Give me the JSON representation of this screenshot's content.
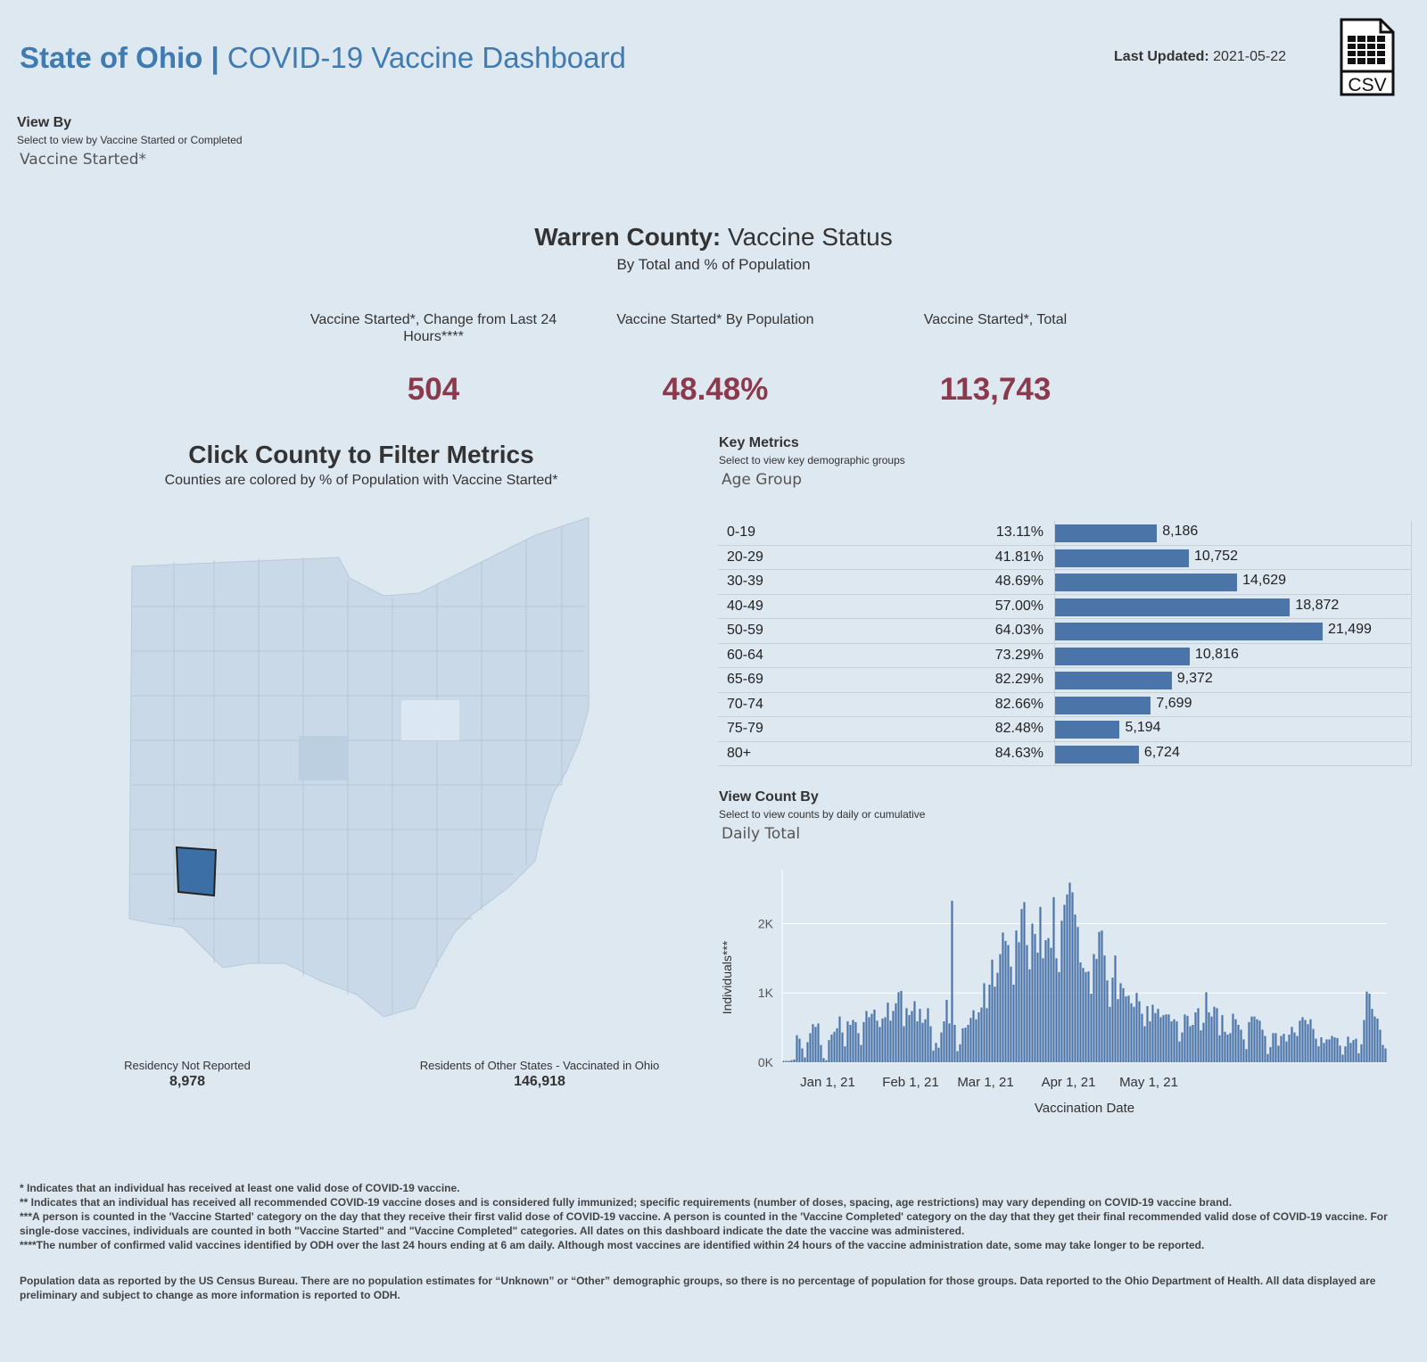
{
  "header": {
    "title_bold": "State of Ohio |",
    "title_rest": "COVID-19 Vaccine Dashboard",
    "last_updated_label": "Last Updated:",
    "last_updated_value": "2021-05-22",
    "csv_label": "CSV"
  },
  "view_by": {
    "heading": "View By",
    "hint": "Select to view by Vaccine Started or Completed",
    "value": "Vaccine Started*"
  },
  "county": {
    "name": "Warren County:",
    "status": "Vaccine Status",
    "subtitle": "By Total and % of Population"
  },
  "kpis": [
    {
      "label": "Vaccine Started*, Change from Last 24 Hours****",
      "value": "504"
    },
    {
      "label": "Vaccine Started* By Population",
      "value": "48.48%"
    },
    {
      "label": "Vaccine Started*, Total",
      "value": "113,743"
    }
  ],
  "map": {
    "title": "Click County to Filter Metrics",
    "subtitle": "Counties are colored by % of Population with Vaccine Started*",
    "selected_county": "Warren",
    "residency_not_reported_label": "Residency Not Reported",
    "residency_not_reported_value": "8,978",
    "other_states_label": "Residents of Other States - Vaccinated in Ohio",
    "other_states_value": "146,918"
  },
  "key_metrics": {
    "heading": "Key Metrics",
    "hint": "Select to view key demographic groups",
    "value": "Age Group",
    "rows": [
      {
        "group": "0-19",
        "pct": "13.11%",
        "count": 8186,
        "count_label": "8,186"
      },
      {
        "group": "20-29",
        "pct": "41.81%",
        "count": 10752,
        "count_label": "10,752"
      },
      {
        "group": "30-39",
        "pct": "48.69%",
        "count": 14629,
        "count_label": "14,629"
      },
      {
        "group": "40-49",
        "pct": "57.00%",
        "count": 18872,
        "count_label": "18,872"
      },
      {
        "group": "50-59",
        "pct": "64.03%",
        "count": 21499,
        "count_label": "21,499"
      },
      {
        "group": "60-64",
        "pct": "73.29%",
        "count": 10816,
        "count_label": "10,816"
      },
      {
        "group": "65-69",
        "pct": "82.29%",
        "count": 9372,
        "count_label": "9,372"
      },
      {
        "group": "70-74",
        "pct": "82.66%",
        "count": 7699,
        "count_label": "7,699"
      },
      {
        "group": "75-79",
        "pct": "82.48%",
        "count": 5194,
        "count_label": "5,194"
      },
      {
        "group": "80+",
        "pct": "84.63%",
        "count": 6724,
        "count_label": "6,724"
      }
    ]
  },
  "view_count": {
    "heading": "View Count By",
    "hint": "Select to view counts by daily or cumulative",
    "value": "Daily Total"
  },
  "chart_data": {
    "type": "bar",
    "title": "",
    "xlabel": "Vaccination Date",
    "ylabel": "Individuals***",
    "ylim": [
      0,
      2700
    ],
    "y_ticks": [
      {
        "v": 0,
        "label": "0K"
      },
      {
        "v": 1000,
        "label": "1K"
      },
      {
        "v": 2000,
        "label": "2K"
      }
    ],
    "x_ticks": [
      {
        "day": 17,
        "label": "Jan 1, 21"
      },
      {
        "day": 48,
        "label": "Feb 1, 21"
      },
      {
        "day": 76,
        "label": "Mar 1, 21"
      },
      {
        "day": 107,
        "label": "Apr 1, 21"
      },
      {
        "day": 137,
        "label": "May 1, 21"
      }
    ],
    "start_date": "2020-12-15",
    "values": [
      20,
      20,
      20,
      30,
      40,
      390,
      340,
      200,
      70,
      290,
      420,
      550,
      510,
      560,
      250,
      60,
      30,
      320,
      400,
      440,
      490,
      660,
      430,
      230,
      590,
      540,
      610,
      580,
      420,
      250,
      580,
      740,
      650,
      700,
      760,
      600,
      510,
      630,
      650,
      860,
      600,
      740,
      850,
      1010,
      1030,
      520,
      780,
      680,
      740,
      880,
      590,
      770,
      570,
      620,
      780,
      520,
      170,
      280,
      210,
      430,
      590,
      900,
      560,
      2330,
      540,
      160,
      260,
      490,
      500,
      540,
      640,
      750,
      620,
      720,
      790,
      1140,
      780,
      1120,
      1480,
      1090,
      1290,
      1560,
      1870,
      1750,
      1690,
      1380,
      1120,
      1900,
      1730,
      2210,
      2310,
      1690,
      1340,
      2000,
      1850,
      1580,
      2240,
      1500,
      1760,
      1790,
      1650,
      2380,
      1500,
      1300,
      2040,
      2270,
      2420,
      2590,
      2450,
      2130,
      1950,
      1440,
      1360,
      1300,
      1310,
      990,
      1560,
      1490,
      1880,
      1900,
      1540,
      1180,
      800,
      1220,
      1540,
      910,
      1140,
      1070,
      950,
      960,
      850,
      800,
      1000,
      880,
      700,
      520,
      810,
      590,
      830,
      710,
      770,
      650,
      680,
      690,
      690,
      590,
      620,
      590,
      300,
      430,
      690,
      670,
      520,
      540,
      720,
      780,
      460,
      570,
      1010,
      720,
      660,
      800,
      780,
      390,
      680,
      440,
      400,
      420,
      700,
      620,
      540,
      470,
      330,
      190,
      580,
      660,
      660,
      620,
      600,
      470,
      380,
      120,
      220,
      420,
      420,
      240,
      380,
      410,
      300,
      400,
      510,
      430,
      380,
      600,
      650,
      610,
      550,
      620,
      480,
      340,
      230,
      360,
      280,
      330,
      330,
      380,
      360,
      350,
      240,
      110,
      230,
      370,
      280,
      320,
      340,
      130,
      260,
      610,
      1020,
      990,
      770,
      660,
      630,
      470,
      250,
      200
    ]
  },
  "footnotes": [
    "* Indicates that an individual has received at least one valid dose of COVID-19 vaccine.",
    "** Indicates that an individual has received all recommended COVID-19 vaccine doses and is considered fully immunized; specific requirements (number of doses, spacing, age restrictions) may vary depending on COVID-19 vaccine brand.",
    "***A person is counted in the 'Vaccine Started' category on the day that they receive their first valid dose of COVID-19 vaccine.  A person is counted in the 'Vaccine Completed' category on the day that they get their final recommended valid dose of COVID-19 vaccine. For single-dose vaccines, individuals are counted in both \"Vaccine Started\" and \"Vaccine Completed\" categories. All dates on this dashboard indicate the date the vaccine was administered.",
    "****The number of confirmed valid vaccines identified by ODH over the last 24 hours ending at 6 am daily. Although most vaccines are identified within 24 hours of the vaccine administration date, some may take longer to be reported."
  ],
  "population_note": "Population data as reported by the US Census Bureau. There are no population estimates for “Unknown” or “Other” demographic groups, so there is no percentage of population for those groups.  Data reported to the Ohio Department of Health.  All data displayed are preliminary and subject to change as more information is reported to ODH.",
  "colors": {
    "brand": "#3f7bb2",
    "kpi": "#8a3a4c",
    "bar": "#4b74a8",
    "map_base": "#c9d9e8",
    "map_selected": "#3c6fa6"
  }
}
